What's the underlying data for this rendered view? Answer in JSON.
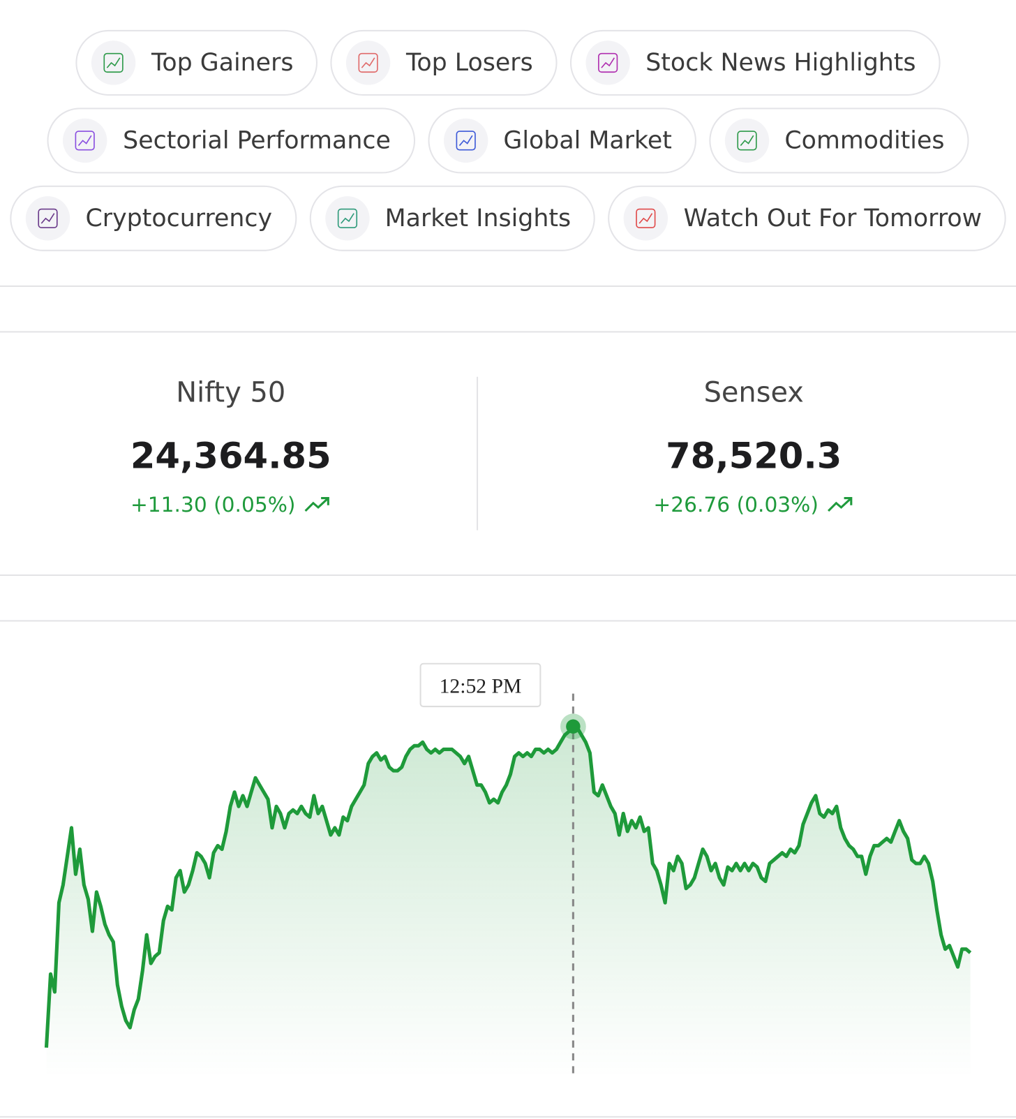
{
  "pills": [
    "Top Gainers",
    "Top Losers",
    "Stock News Highlights",
    "Sectorial Performance",
    "Global Market",
    "Commodities",
    "Cryptocurrency",
    "Market Insights",
    "Watch Out For Tomorrow"
  ],
  "indices": [
    {
      "name": "Nifty 50",
      "value": "24,364.85",
      "change": "+11.30 (0.05%)"
    },
    {
      "name": "Sensex",
      "value": "78,520.3",
      "change": "+26.76 (0.03%)"
    }
  ],
  "chart_data": {
    "type": "line",
    "color": "#1e9a3a",
    "tooltip": "12:52 PM",
    "ylim": [
      0,
      510
    ],
    "values": [
      42,
      145,
      120,
      245,
      270,
      310,
      350,
      285,
      320,
      270,
      250,
      205,
      260,
      240,
      215,
      200,
      190,
      130,
      100,
      80,
      70,
      95,
      110,
      150,
      200,
      160,
      170,
      175,
      220,
      240,
      235,
      280,
      290,
      260,
      270,
      290,
      315,
      310,
      300,
      280,
      315,
      325,
      320,
      345,
      380,
      400,
      380,
      395,
      380,
      400,
      420,
      410,
      400,
      390,
      350,
      380,
      370,
      350,
      370,
      375,
      370,
      380,
      370,
      365,
      395,
      370,
      380,
      360,
      340,
      350,
      340,
      365,
      360,
      380,
      390,
      400,
      410,
      440,
      450,
      455,
      445,
      450,
      435,
      430,
      430,
      435,
      450,
      460,
      465,
      465,
      470,
      460,
      455,
      460,
      455,
      460,
      460,
      460,
      455,
      450,
      440,
      450,
      430,
      410,
      410,
      400,
      385,
      390,
      385,
      400,
      410,
      425,
      450,
      455,
      450,
      455,
      450,
      460,
      460,
      455,
      460,
      455,
      460,
      470,
      480,
      485,
      492,
      490,
      480,
      470,
      455,
      400,
      395,
      410,
      395,
      380,
      370,
      340,
      370,
      345,
      360,
      350,
      365,
      345,
      350,
      300,
      290,
      270,
      245,
      300,
      290,
      310,
      300,
      265,
      270,
      280,
      300,
      320,
      310,
      290,
      300,
      280,
      270,
      295,
      290,
      300,
      290,
      300,
      290,
      300,
      295,
      280,
      275,
      300,
      305,
      310,
      315,
      310,
      320,
      315,
      325,
      355,
      370,
      385,
      395,
      370,
      365,
      375,
      370,
      380,
      350,
      335,
      325,
      320,
      310,
      310,
      285,
      310,
      325,
      325,
      330,
      335,
      330,
      345,
      360,
      345,
      335,
      305,
      300,
      300,
      310,
      300,
      275,
      235,
      200,
      180,
      185,
      170,
      155,
      180,
      180,
      175
    ]
  }
}
